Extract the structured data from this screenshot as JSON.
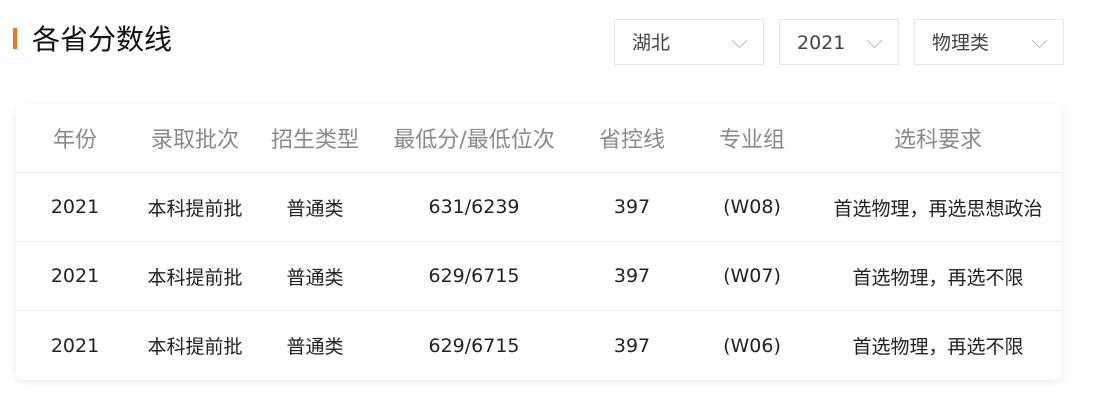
{
  "header": {
    "title": "各省分数线"
  },
  "filters": [
    {
      "value": "湖北",
      "icon": "chevron-down-icon"
    },
    {
      "value": "2021",
      "icon": "chevron-down-icon"
    },
    {
      "value": "物理类",
      "icon": "chevron-down-icon"
    }
  ],
  "table": {
    "columns": [
      "年份",
      "录取批次",
      "招生类型",
      "最低分/最低位次",
      "省控线",
      "专业组",
      "选科要求"
    ],
    "rows": [
      [
        "2021",
        "本科提前批",
        "普通类",
        "631/6239",
        "397",
        "(W08)",
        "首选物理，再选思想政治"
      ],
      [
        "2021",
        "本科提前批",
        "普通类",
        "629/6715",
        "397",
        "(W07)",
        "首选物理，再选不限"
      ],
      [
        "2021",
        "本科提前批",
        "普通类",
        "629/6715",
        "397",
        "(W06)",
        "首选物理，再选不限"
      ]
    ]
  },
  "colors": {
    "accent": "#f0731f"
  }
}
